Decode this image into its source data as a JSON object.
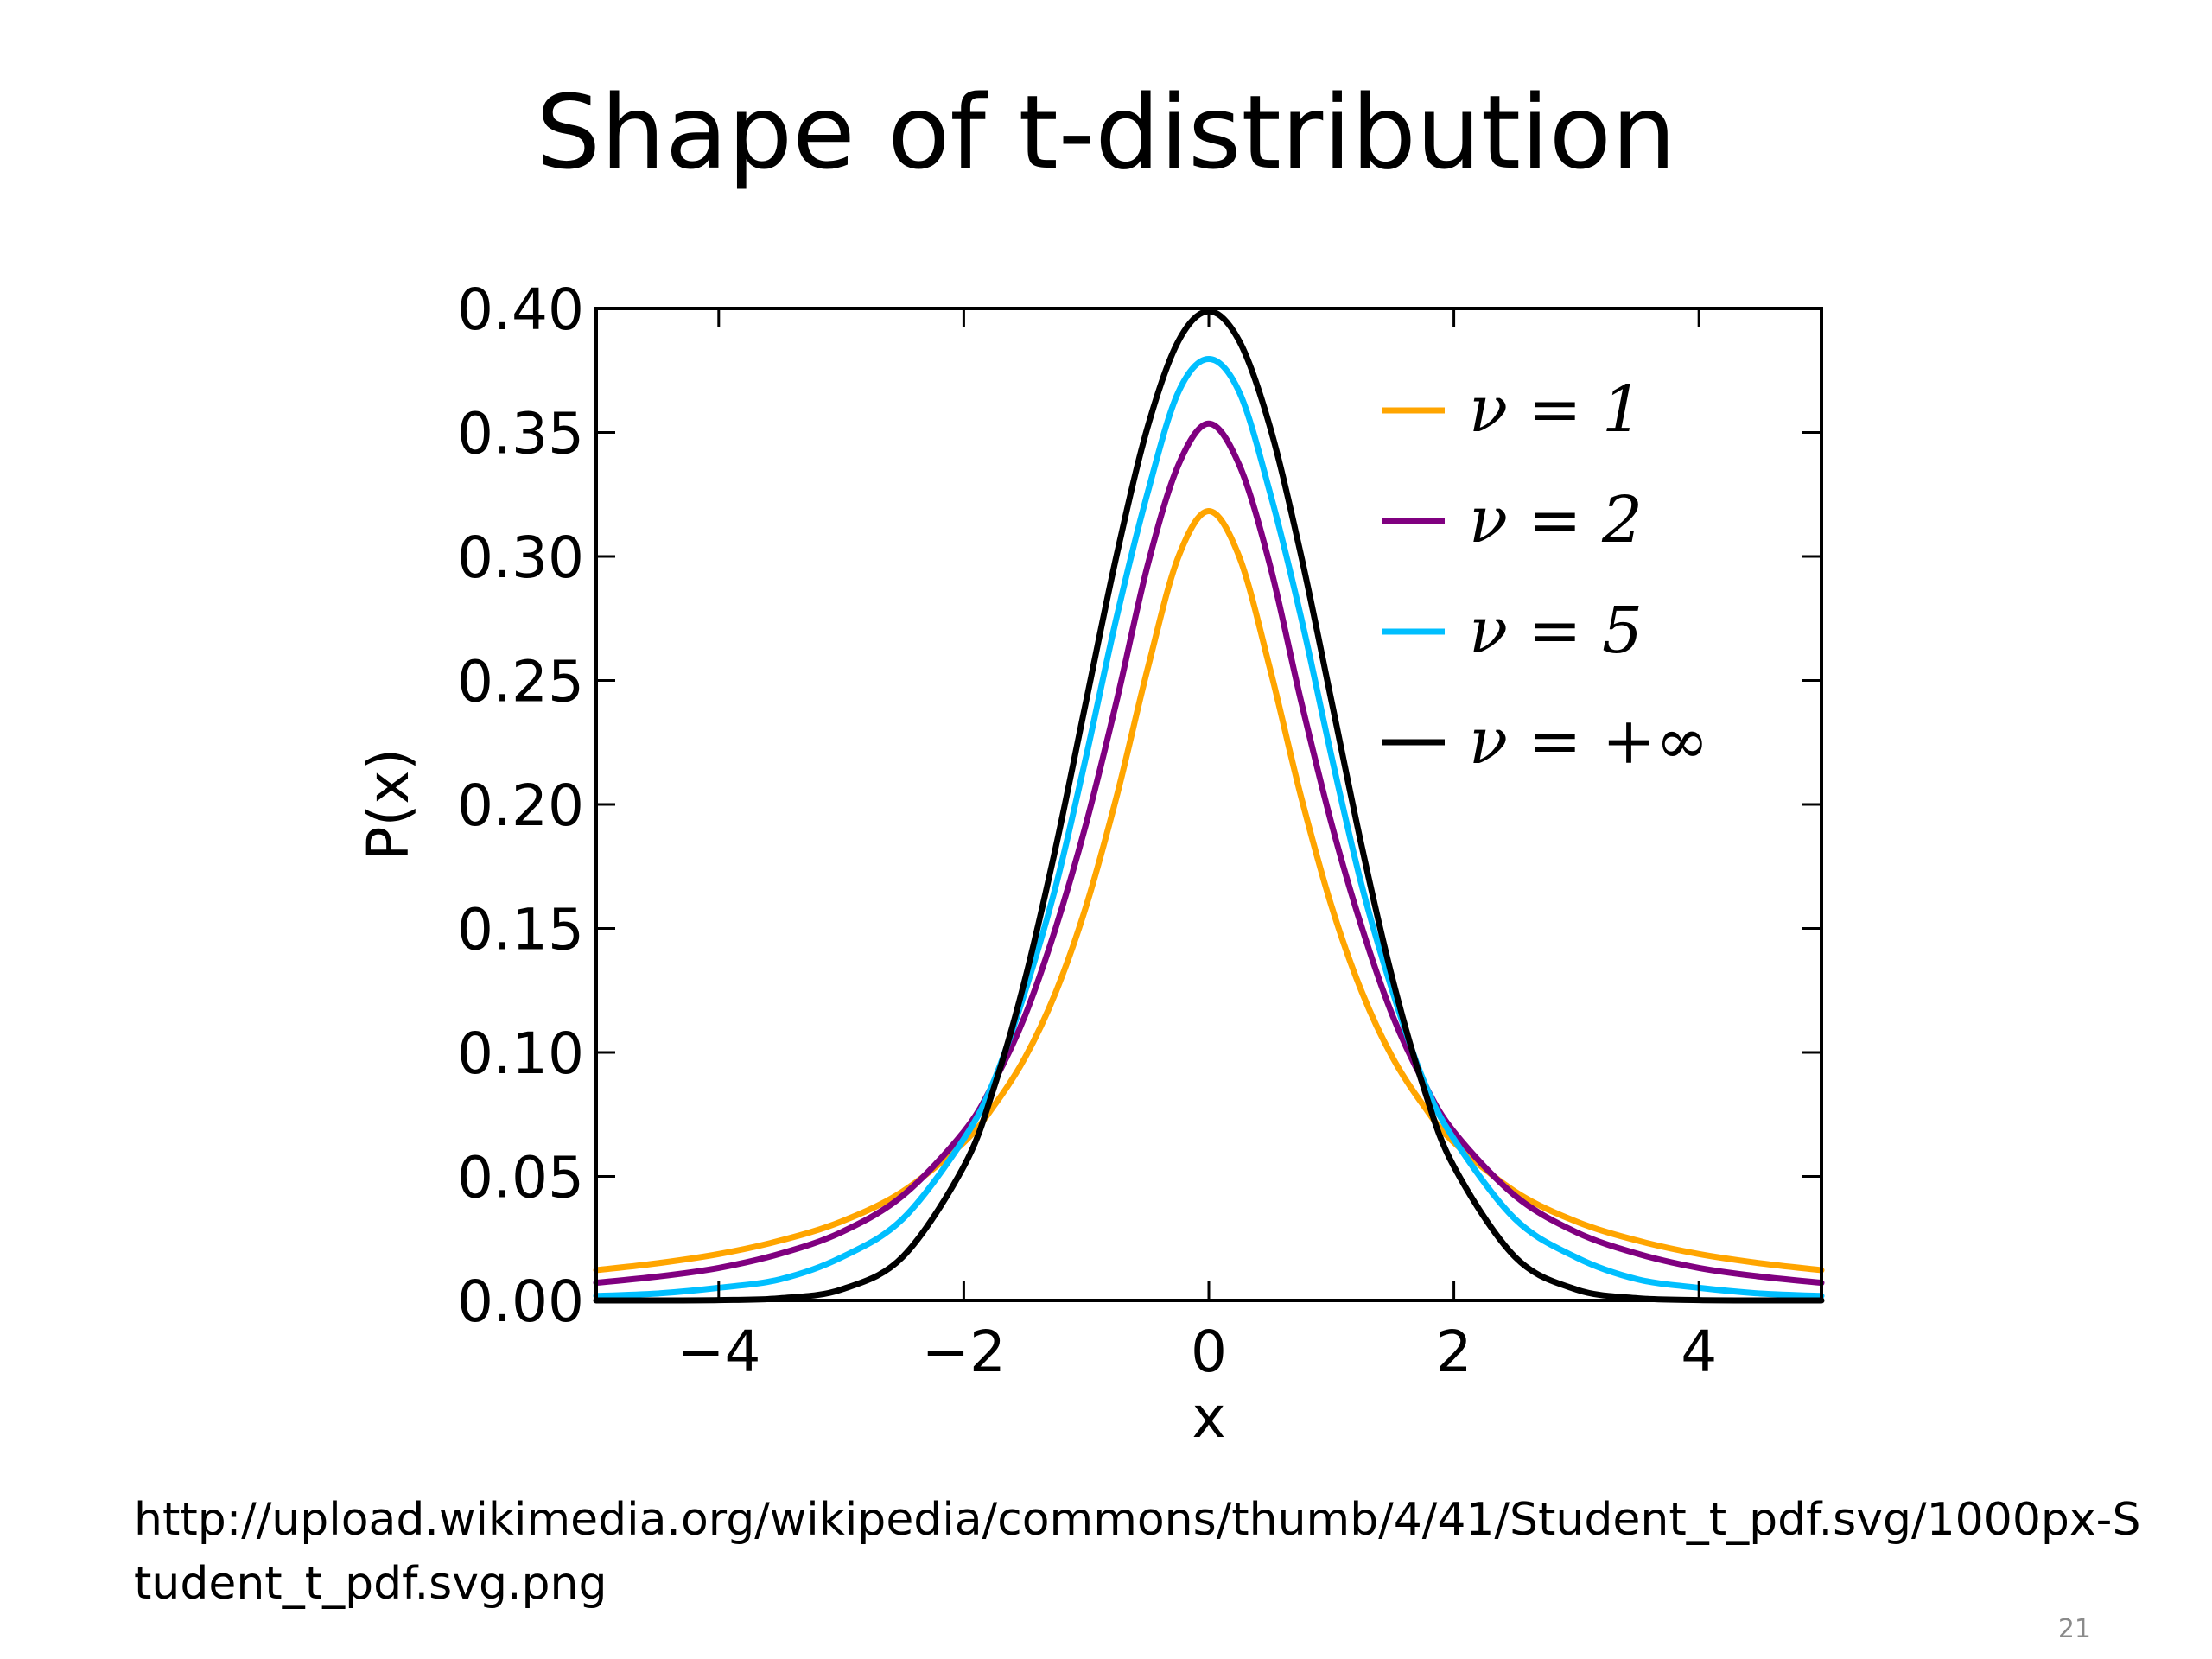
{
  "slide": {
    "title": "Shape of t-distribution",
    "source_url": "http://upload.wikimedia.org/wikipedia/commons/thumb/4/41/Student_t_pdf.svg/1000px-Student_t_pdf.svg.png",
    "page_number": "21"
  },
  "chart_data": {
    "type": "line",
    "title": "",
    "xlabel": "x",
    "ylabel": "P(x)",
    "xlim": [
      -5,
      5
    ],
    "ylim": [
      0,
      0.4
    ],
    "x_ticks": [
      -4,
      -2,
      0,
      2,
      4
    ],
    "x_tick_labels": [
      "−4",
      "−2",
      "0",
      "2",
      "4"
    ],
    "y_ticks": [
      0,
      0.05,
      0.1,
      0.15,
      0.2,
      0.25,
      0.3,
      0.35,
      0.4
    ],
    "y_tick_labels": [
      "0.00",
      "0.05",
      "0.10",
      "0.15",
      "0.20",
      "0.25",
      "0.30",
      "0.35",
      "0.40"
    ],
    "grid": false,
    "legend_position": "top-right",
    "x": [
      -5,
      -4.5,
      -4,
      -3.5,
      -3,
      -2.5,
      -2,
      -1.75,
      -1.5,
      -1.25,
      -1,
      -0.75,
      -0.5,
      -0.25,
      0,
      0.25,
      0.5,
      0.75,
      1,
      1.25,
      1.5,
      1.75,
      2,
      2.5,
      3,
      3.5,
      4,
      4.5,
      5
    ],
    "series": [
      {
        "name": "ν = 1",
        "color": "#FFA500",
        "values": [
          0.0122,
          0.015,
          0.0187,
          0.0241,
          0.0318,
          0.0439,
          0.0637,
          0.0787,
          0.0979,
          0.1242,
          0.1592,
          0.2037,
          0.2546,
          0.2996,
          0.3183,
          0.2996,
          0.2546,
          0.2037,
          0.1592,
          0.1242,
          0.0979,
          0.0787,
          0.0637,
          0.0439,
          0.0318,
          0.0241,
          0.0187,
          0.015,
          0.0122
        ]
      },
      {
        "name": "ν = 2",
        "color": "#800080",
        "values": [
          0.0071,
          0.0096,
          0.0131,
          0.0188,
          0.0275,
          0.0422,
          0.068,
          0.0883,
          0.1148,
          0.1502,
          0.1925,
          0.2423,
          0.2963,
          0.3367,
          0.3536,
          0.3367,
          0.2963,
          0.2423,
          0.1925,
          0.1502,
          0.1148,
          0.0883,
          0.068,
          0.0422,
          0.0275,
          0.0188,
          0.0131,
          0.0096,
          0.0071
        ]
      },
      {
        "name": "ν = 5",
        "color": "#00BFFF",
        "values": [
          0.0018,
          0.0028,
          0.0051,
          0.0085,
          0.0173,
          0.0328,
          0.0651,
          0.089,
          0.1245,
          0.1669,
          0.2197,
          0.2761,
          0.3256,
          0.3661,
          0.3796,
          0.3661,
          0.3256,
          0.2761,
          0.2197,
          0.1669,
          0.1245,
          0.089,
          0.0651,
          0.0328,
          0.0173,
          0.0085,
          0.0051,
          0.0028,
          0.0018
        ]
      },
      {
        "name": "ν = +∞",
        "color": "#000000",
        "values": [
          1.5e-06,
          1.6e-05,
          0.000134,
          0.00087,
          0.0044,
          0.0175,
          0.054,
          0.0863,
          0.1295,
          0.1826,
          0.242,
          0.3011,
          0.3521,
          0.3867,
          0.3989,
          0.3867,
          0.3521,
          0.3011,
          0.242,
          0.1826,
          0.1295,
          0.0863,
          0.054,
          0.0175,
          0.0044,
          0.00087,
          0.000134,
          1.6e-05,
          1.5e-06
        ]
      }
    ],
    "legend_labels": [
      "ν = 1",
      "ν = 2",
      "ν = 5",
      "ν = +∞"
    ]
  }
}
